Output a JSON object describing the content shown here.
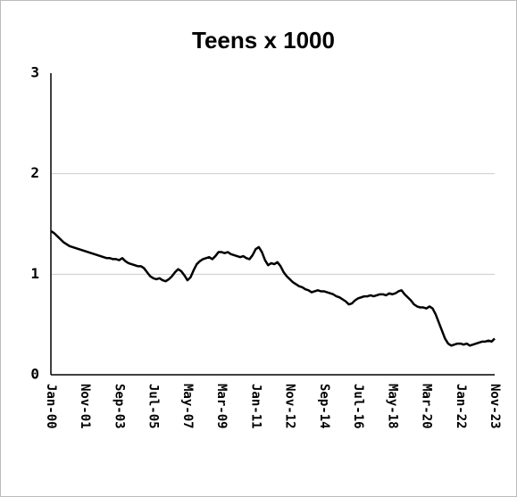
{
  "chart_data": {
    "type": "line",
    "title": "Teens x 1000",
    "categories": [
      "Jan-00",
      null,
      null,
      null,
      null,
      null,
      null,
      null,
      null,
      null,
      null,
      "Nov-01",
      null,
      null,
      null,
      null,
      null,
      null,
      null,
      null,
      null,
      null,
      "Sep-03",
      null,
      null,
      null,
      null,
      null,
      null,
      null,
      null,
      null,
      null,
      "Jul-05",
      null,
      null,
      null,
      null,
      null,
      null,
      null,
      null,
      null,
      null,
      "May-07",
      null,
      null,
      null,
      null,
      null,
      null,
      null,
      null,
      null,
      null,
      "Mar-09",
      null,
      null,
      null,
      null,
      null,
      null,
      null,
      null,
      null,
      null,
      "Jan-11",
      null,
      null,
      null,
      null,
      null,
      null,
      null,
      null,
      null,
      null,
      "Nov-12",
      null,
      null,
      null,
      null,
      null,
      null,
      null,
      null,
      null,
      null,
      "Sep-14",
      null,
      null,
      null,
      null,
      null,
      null,
      null,
      null,
      null,
      null,
      "Jul-16",
      null,
      null,
      null,
      null,
      null,
      null,
      null,
      null,
      null,
      null,
      "May-18",
      null,
      null,
      null,
      null,
      null,
      null,
      null,
      null,
      null,
      null,
      "Mar-20",
      null,
      null,
      null,
      null,
      null,
      null,
      null,
      null,
      null,
      null,
      "Jan-22",
      null,
      null,
      null,
      null,
      null,
      null,
      null,
      null,
      null,
      null,
      "Nov-23"
    ],
    "values": [
      1.43,
      1.41,
      1.38,
      1.35,
      1.32,
      1.3,
      1.28,
      1.27,
      1.26,
      1.25,
      1.24,
      1.23,
      1.22,
      1.21,
      1.2,
      1.19,
      1.18,
      1.17,
      1.16,
      1.16,
      1.15,
      1.15,
      1.14,
      1.16,
      1.13,
      1.11,
      1.1,
      1.09,
      1.08,
      1.08,
      1.06,
      1.02,
      0.98,
      0.96,
      0.95,
      0.96,
      0.94,
      0.93,
      0.95,
      0.98,
      1.02,
      1.05,
      1.03,
      0.99,
      0.94,
      0.97,
      1.04,
      1.1,
      1.13,
      1.15,
      1.16,
      1.17,
      1.15,
      1.18,
      1.22,
      1.22,
      1.21,
      1.22,
      1.2,
      1.19,
      1.18,
      1.17,
      1.18,
      1.16,
      1.15,
      1.19,
      1.25,
      1.27,
      1.22,
      1.14,
      1.09,
      1.11,
      1.1,
      1.12,
      1.08,
      1.02,
      0.98,
      0.95,
      0.92,
      0.9,
      0.88,
      0.87,
      0.85,
      0.84,
      0.82,
      0.83,
      0.84,
      0.83,
      0.83,
      0.82,
      0.81,
      0.8,
      0.78,
      0.77,
      0.75,
      0.73,
      0.7,
      0.71,
      0.74,
      0.76,
      0.77,
      0.78,
      0.78,
      0.79,
      0.78,
      0.79,
      0.8,
      0.8,
      0.79,
      0.81,
      0.8,
      0.81,
      0.83,
      0.84,
      0.8,
      0.77,
      0.74,
      0.7,
      0.68,
      0.67,
      0.67,
      0.66,
      0.68,
      0.66,
      0.6,
      0.52,
      0.44,
      0.36,
      0.31,
      0.29,
      0.3,
      0.31,
      0.31,
      0.3,
      0.31,
      0.29,
      0.3,
      0.31,
      0.32,
      0.33,
      0.33,
      0.34,
      0.33,
      0.36
    ],
    "color": "#000000",
    "ylim": [
      0,
      3
    ],
    "yticks": [
      0,
      1,
      2,
      3
    ],
    "grid": true
  }
}
